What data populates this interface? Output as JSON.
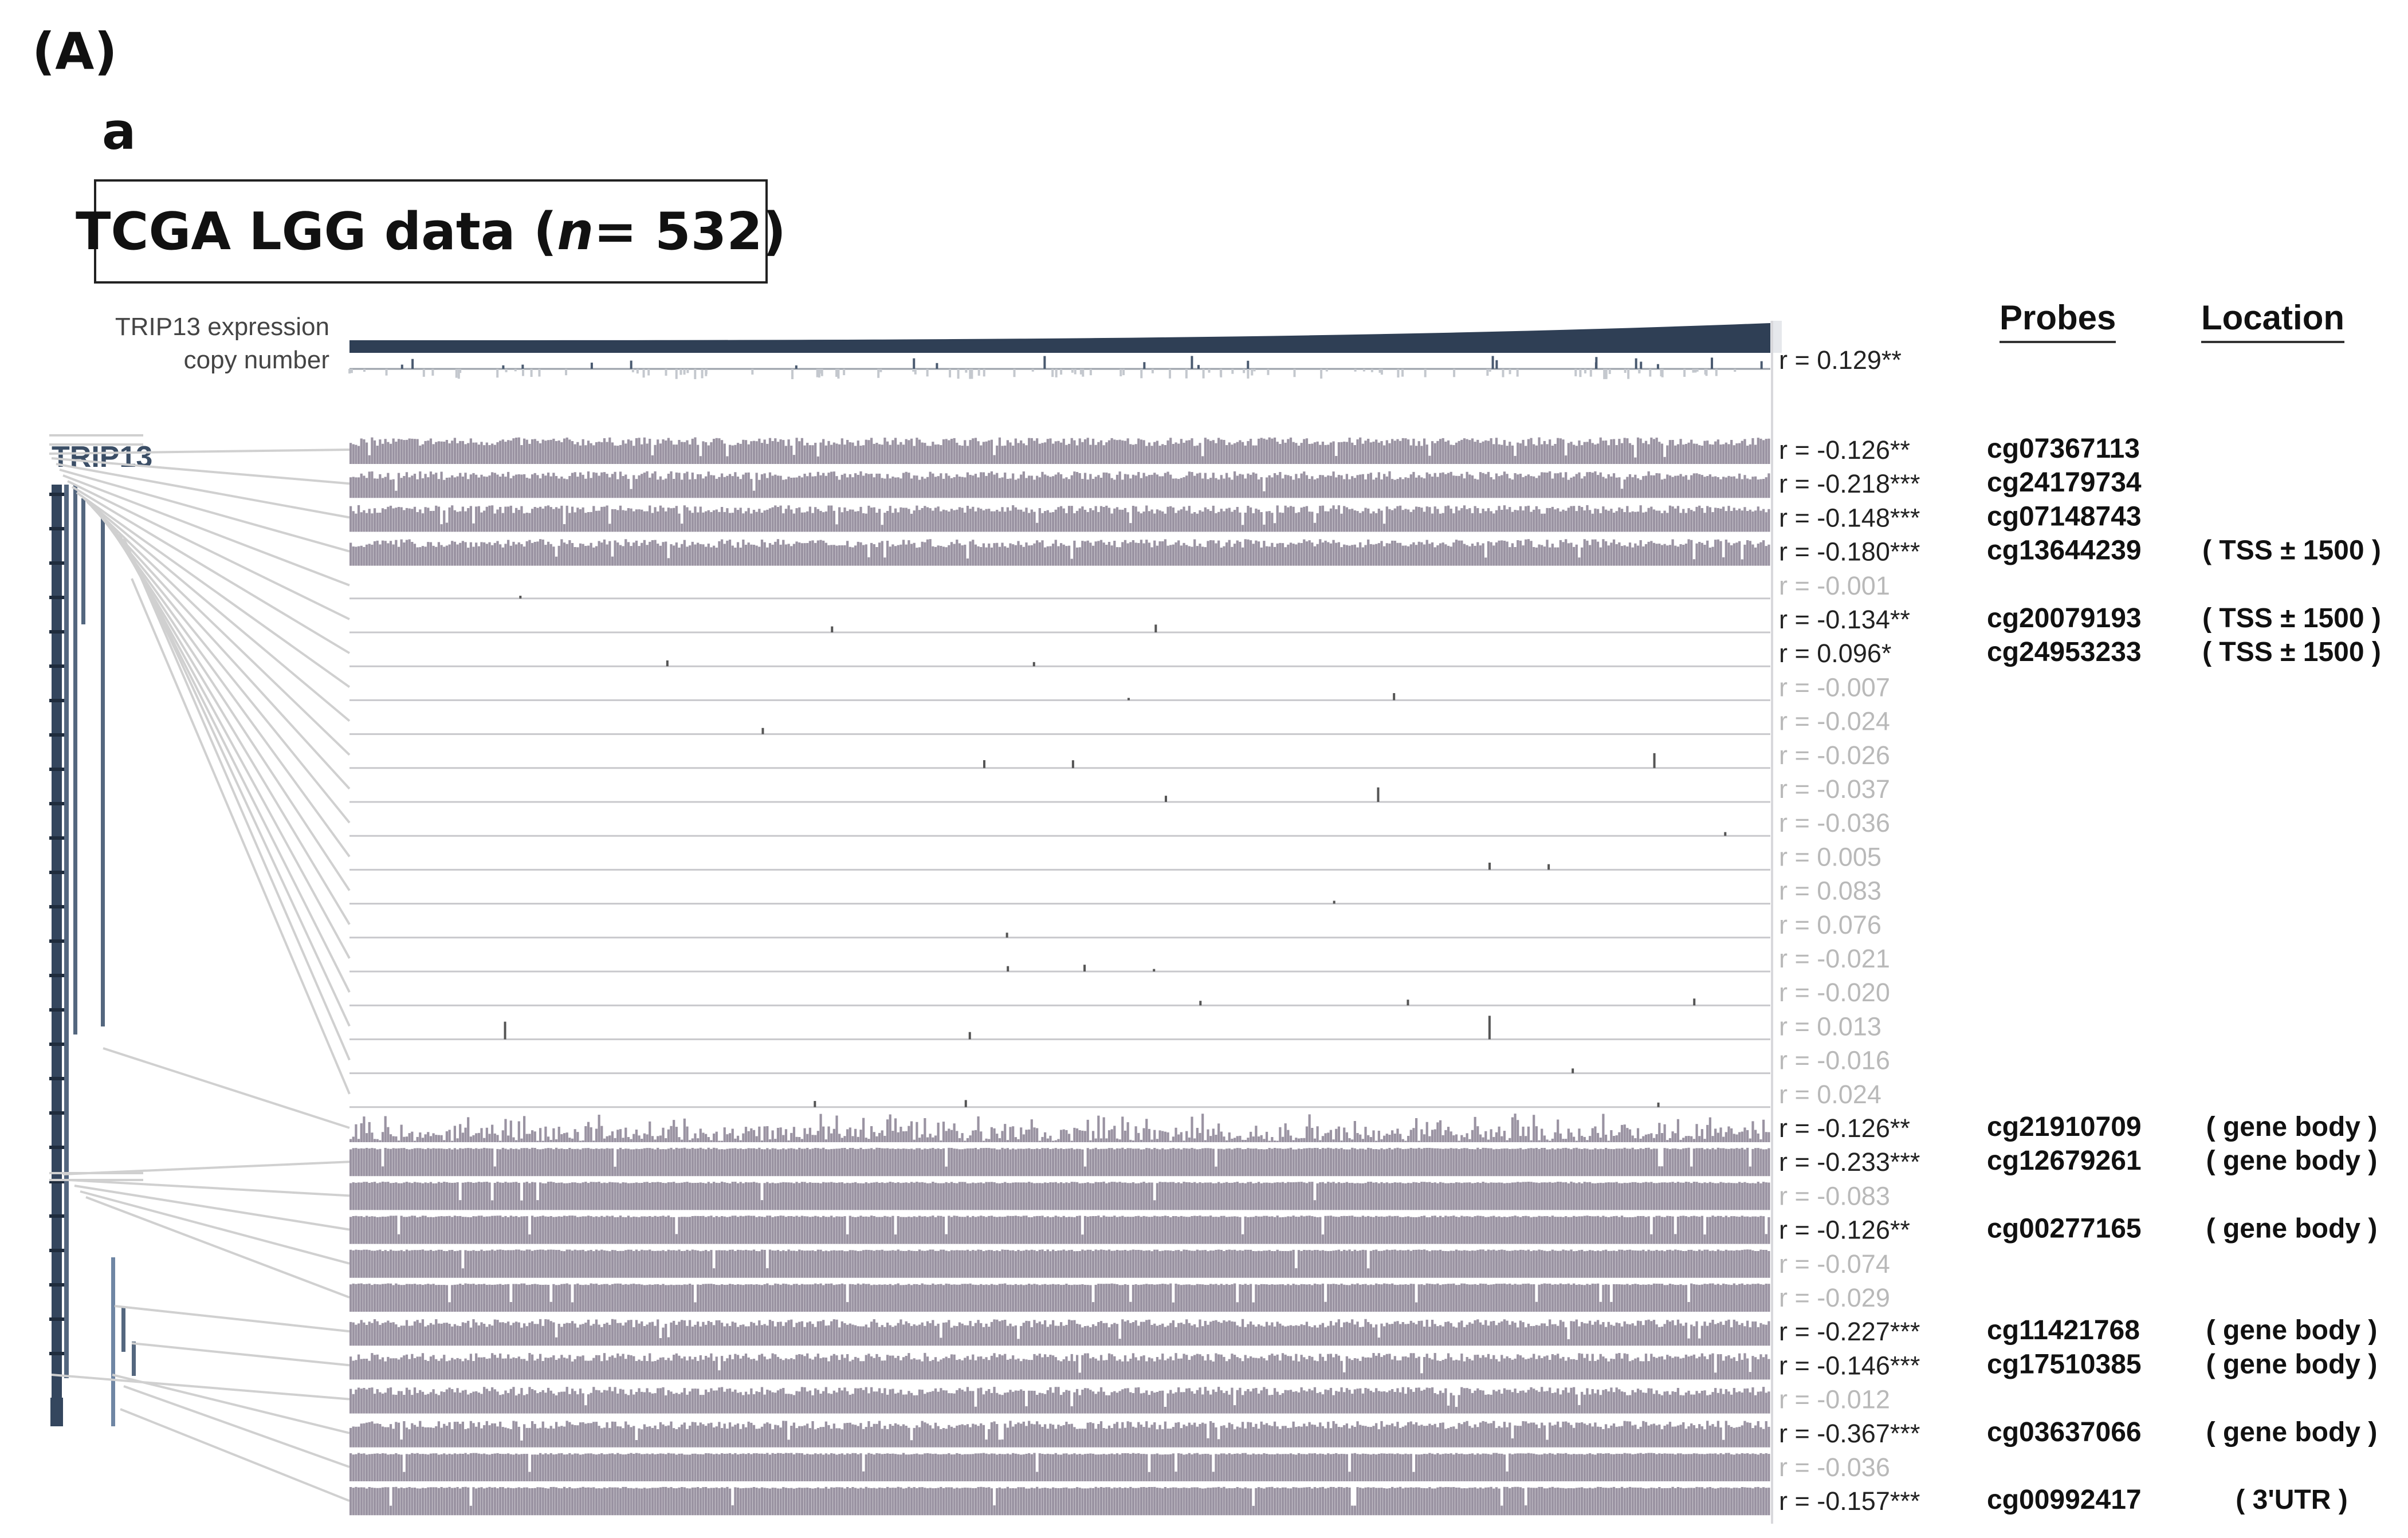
{
  "panel_label": "(A)",
  "sub_label": "a",
  "title": {
    "prefix": "TCGA  LGG data (",
    "n_italic": "n",
    "suffix": " = 532)"
  },
  "tracks": {
    "expression_label": "TRIP13 expression",
    "copy_label": "copy number"
  },
  "gene": "TRIP13",
  "headers": {
    "probes": "Probes",
    "location": "Location"
  },
  "colors": {
    "expression": "#2f3f55",
    "methylation": "#9a93a2",
    "sparse": "#555555",
    "gene_model": "#34465e",
    "connector": "#d0d0d0",
    "r_significant": "#222222",
    "r_nonsignificant": "#b9b9b9"
  },
  "chart_data": {
    "type": "heatmap",
    "n_samples": 532,
    "copy_number": {
      "r": "r = 0.129**",
      "significant": true
    },
    "rows": [
      {
        "r": "r = -0.126**",
        "significant": true,
        "probe": "cg07367113",
        "location": "",
        "density": "high"
      },
      {
        "r": "r = -0.218***",
        "significant": true,
        "probe": "cg24179734",
        "location": "",
        "density": "high"
      },
      {
        "r": "r = -0.148***",
        "significant": true,
        "probe": "cg07148743",
        "location": "",
        "density": "high"
      },
      {
        "r": "r = -0.180***",
        "significant": true,
        "probe": "cg13644239",
        "location": "( TSS ± 1500 )",
        "density": "high"
      },
      {
        "r": "r = -0.001",
        "significant": false,
        "probe": "",
        "location": "",
        "density": "sparse"
      },
      {
        "r": "r = -0.134**",
        "significant": true,
        "probe": "cg20079193",
        "location": "( TSS ± 1500 )",
        "density": "sparse"
      },
      {
        "r": "r = 0.096*",
        "significant": true,
        "probe": "cg24953233",
        "location": "( TSS ± 1500 )",
        "density": "sparse"
      },
      {
        "r": "r = -0.007",
        "significant": false,
        "probe": "",
        "location": "",
        "density": "sparse"
      },
      {
        "r": "r = -0.024",
        "significant": false,
        "probe": "",
        "location": "",
        "density": "sparse"
      },
      {
        "r": "r = -0.026",
        "significant": false,
        "probe": "",
        "location": "",
        "density": "sparse"
      },
      {
        "r": "r = -0.037",
        "significant": false,
        "probe": "",
        "location": "",
        "density": "sparse"
      },
      {
        "r": "r = -0.036",
        "significant": false,
        "probe": "",
        "location": "",
        "density": "sparse"
      },
      {
        "r": "r = 0.005",
        "significant": false,
        "probe": "",
        "location": "",
        "density": "sparse"
      },
      {
        "r": "r = 0.083",
        "significant": false,
        "probe": "",
        "location": "",
        "density": "sparse"
      },
      {
        "r": "r = 0.076",
        "significant": false,
        "probe": "",
        "location": "",
        "density": "sparse"
      },
      {
        "r": "r = -0.021",
        "significant": false,
        "probe": "",
        "location": "",
        "density": "sparse"
      },
      {
        "r": "r = -0.020",
        "significant": false,
        "probe": "",
        "location": "",
        "density": "sparse"
      },
      {
        "r": "r = 0.013",
        "significant": false,
        "probe": "",
        "location": "",
        "density": "sparse"
      },
      {
        "r": "r = -0.016",
        "significant": false,
        "probe": "",
        "location": "",
        "density": "sparse"
      },
      {
        "r": "r = 0.024",
        "significant": false,
        "probe": "",
        "location": "",
        "density": "sparse"
      },
      {
        "r": "r = -0.126**",
        "significant": true,
        "probe": "cg21910709",
        "location": "( gene body )",
        "density": "medium"
      },
      {
        "r": "r = -0.233***",
        "significant": true,
        "probe": "cg12679261",
        "location": "( gene body )",
        "density": "full"
      },
      {
        "r": "r = -0.083",
        "significant": false,
        "probe": "",
        "location": "",
        "density": "full"
      },
      {
        "r": "r = -0.126**",
        "significant": true,
        "probe": "cg00277165",
        "location": "( gene body )",
        "density": "full"
      },
      {
        "r": "r = -0.074",
        "significant": false,
        "probe": "",
        "location": "",
        "density": "full"
      },
      {
        "r": "r = -0.029",
        "significant": false,
        "probe": "",
        "location": "",
        "density": "full"
      },
      {
        "r": "r = -0.227***",
        "significant": true,
        "probe": "cg11421768",
        "location": "( gene body )",
        "density": "high"
      },
      {
        "r": "r = -0.146***",
        "significant": true,
        "probe": "cg17510385",
        "location": "( gene body )",
        "density": "high"
      },
      {
        "r": "r = -0.012",
        "significant": false,
        "probe": "",
        "location": "",
        "density": "high"
      },
      {
        "r": "r = -0.367***",
        "significant": true,
        "probe": "cg03637066",
        "location": "( gene body )",
        "density": "high"
      },
      {
        "r": "r = -0.036",
        "significant": false,
        "probe": "",
        "location": "",
        "density": "full"
      },
      {
        "r": "r = -0.157***",
        "significant": true,
        "probe": "cg00992417",
        "location": "( 3'UTR )",
        "density": "full"
      }
    ]
  }
}
